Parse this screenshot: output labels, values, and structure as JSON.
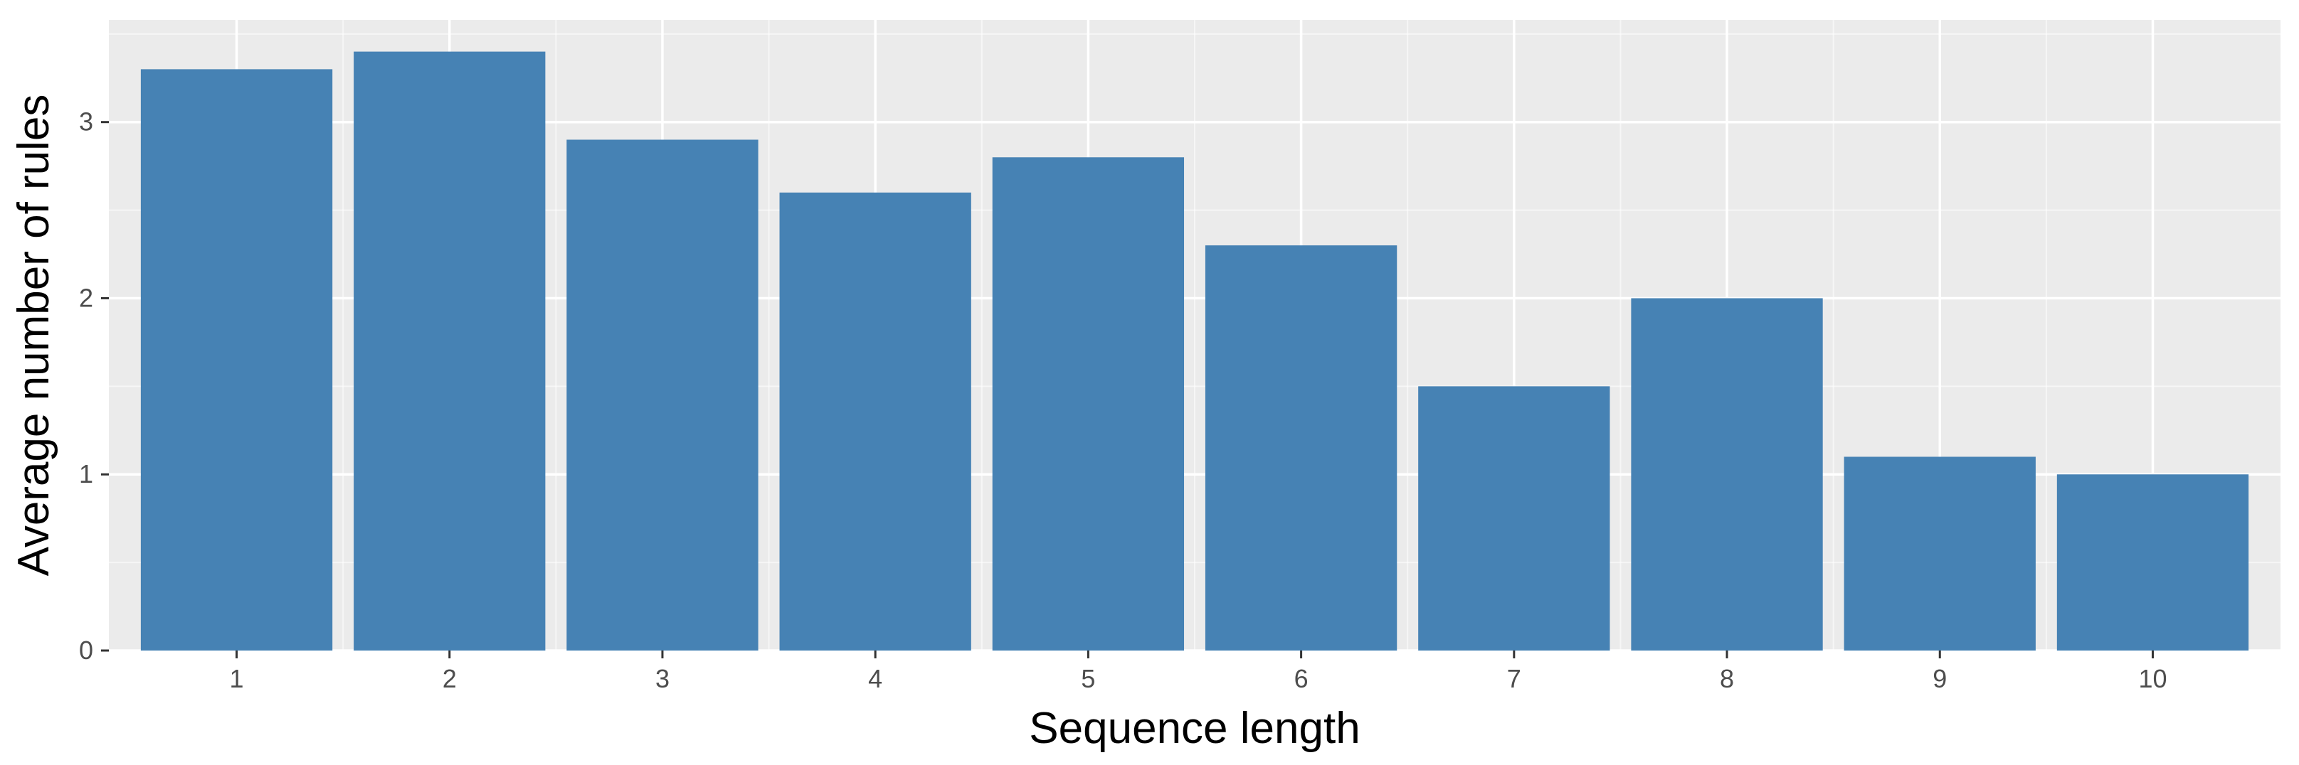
{
  "chart_data": {
    "type": "bar",
    "title": "",
    "xlabel": "Sequence length",
    "ylabel": "Average number of rules",
    "categories": [
      "1",
      "2",
      "3",
      "4",
      "5",
      "6",
      "7",
      "8",
      "9",
      "10"
    ],
    "values": [
      3.3,
      3.4,
      2.9,
      2.6,
      2.8,
      2.3,
      1.5,
      2.0,
      1.1,
      1.0
    ],
    "ylim": [
      0,
      3.58
    ],
    "yticks": [
      0,
      1,
      2,
      3
    ],
    "yticks_labels": [
      "0",
      "1",
      "2",
      "3"
    ],
    "grid": true,
    "legend": "none",
    "colors": {
      "bar": "#4682B4",
      "panel_background": "#EBEBEB",
      "grid_major": "#FFFFFF",
      "grid_minor": "#F5F5F5",
      "tick_label": "#4D4D4D",
      "axis_title": "#000000",
      "tick_mark": "#333333"
    }
  }
}
